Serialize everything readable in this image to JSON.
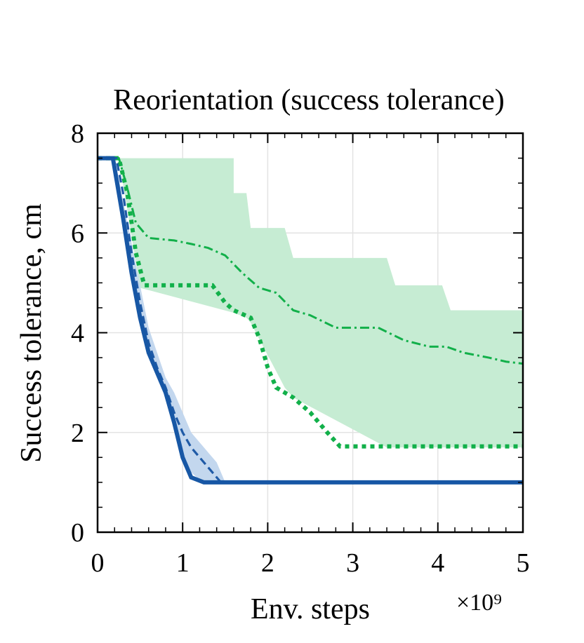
{
  "chart_data": {
    "type": "line",
    "title": "Reorientation (success tolerance)",
    "xlabel": "Env. steps",
    "ylabel": "Success tolerance, cm",
    "x_multiplier": "×10⁹",
    "xlim": [
      0,
      5
    ],
    "ylim": [
      0,
      8
    ],
    "xticks": [
      0,
      1,
      2,
      3,
      4,
      5
    ],
    "yticks": [
      0,
      2,
      4,
      6,
      8
    ],
    "xminorticks": [
      0.2,
      0.4,
      0.6,
      0.8,
      1.2,
      1.4,
      1.6,
      1.8,
      2.2,
      2.4,
      2.6,
      2.8,
      3.2,
      3.4,
      3.6,
      3.8,
      4.2,
      4.4,
      4.6,
      4.8
    ],
    "yminorticks": [
      0.5,
      1,
      1.5,
      2.5,
      3,
      3.5,
      4.5,
      5,
      5.5,
      6.5,
      7,
      7.5
    ],
    "grid": true,
    "bands": [
      {
        "color": "#c6ecd3",
        "x": [
          0,
          0.25,
          0.5,
          1.6,
          1.6,
          1.75,
          1.8,
          2.2,
          2.3,
          3.4,
          3.5,
          4.05,
          4.15,
          5.0
        ],
        "upper": [
          7.5,
          7.5,
          7.5,
          7.5,
          6.8,
          6.8,
          6.1,
          6.1,
          5.5,
          5.5,
          4.95,
          4.95,
          4.45,
          4.45
        ],
        "lower": [
          7.5,
          7.5,
          4.9,
          4.4,
          4.4,
          4.3,
          4.2,
          2.9,
          2.7,
          1.7,
          1.7,
          1.7,
          1.7,
          1.7
        ]
      },
      {
        "color": "#c3d7ee",
        "x": [
          0,
          0.2,
          0.4,
          0.6,
          0.8,
          0.9,
          1.0,
          1.1,
          1.2,
          1.3,
          1.4,
          1.5
        ],
        "upper": [
          7.5,
          7.5,
          5.8,
          4.1,
          3.1,
          2.8,
          2.4,
          2.0,
          1.8,
          1.6,
          1.4,
          1.0
        ],
        "lower": [
          7.5,
          7.5,
          5.2,
          3.6,
          2.7,
          2.1,
          1.6,
          1.2,
          1.05,
          1.0,
          1.0,
          1.0
        ]
      }
    ],
    "series": [
      {
        "color": "#12b04a",
        "style": "dashdot",
        "x": [
          0,
          0.25,
          0.35,
          0.45,
          0.6,
          0.9,
          1.1,
          1.3,
          1.5,
          1.7,
          1.9,
          2.1,
          2.3,
          2.5,
          2.8,
          3.3,
          3.6,
          3.9,
          4.1,
          4.3,
          4.6,
          4.8,
          5.0
        ],
        "values": [
          7.5,
          7.5,
          6.9,
          6.2,
          5.9,
          5.85,
          5.78,
          5.7,
          5.55,
          5.2,
          4.9,
          4.8,
          4.45,
          4.35,
          4.1,
          4.1,
          3.85,
          3.72,
          3.72,
          3.6,
          3.5,
          3.42,
          3.38
        ]
      },
      {
        "color": "#12b04a",
        "style": "dotted",
        "x": [
          0,
          0.25,
          0.35,
          0.45,
          0.55,
          1.35,
          1.5,
          1.6,
          1.8,
          1.9,
          2.0,
          2.1,
          2.3,
          2.5,
          2.7,
          2.85,
          5.0
        ],
        "values": [
          7.5,
          7.5,
          6.8,
          5.6,
          4.95,
          4.95,
          4.6,
          4.45,
          4.3,
          3.9,
          3.3,
          2.9,
          2.7,
          2.4,
          2.0,
          1.72,
          1.72
        ]
      },
      {
        "color": "#1f5aa6",
        "style": "dashed",
        "x": [
          0,
          0.22,
          0.3,
          0.4,
          0.5,
          0.6,
          0.7,
          0.8,
          0.9,
          1.0,
          1.1,
          1.2,
          1.3,
          1.45,
          5.0
        ],
        "values": [
          7.5,
          7.5,
          6.8,
          5.6,
          4.6,
          3.8,
          3.3,
          2.9,
          2.4,
          2.0,
          1.7,
          1.5,
          1.3,
          1.0,
          1.0
        ]
      },
      {
        "color": "#1757a5",
        "style": "solid",
        "x": [
          0,
          0.18,
          0.3,
          0.4,
          0.5,
          0.6,
          0.7,
          0.8,
          0.9,
          1.0,
          1.1,
          1.25,
          5.0
        ],
        "values": [
          7.5,
          7.5,
          6.3,
          5.2,
          4.3,
          3.6,
          3.2,
          2.8,
          2.2,
          1.5,
          1.1,
          1.0,
          1.0
        ]
      }
    ]
  }
}
